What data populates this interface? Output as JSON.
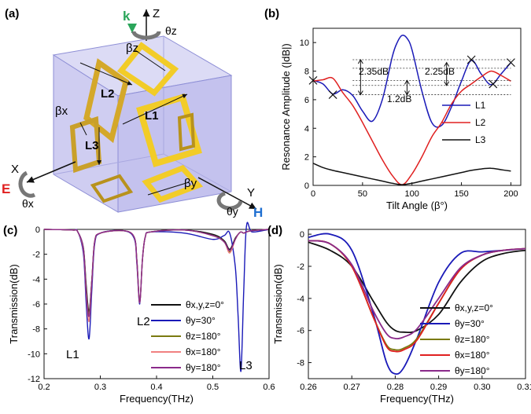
{
  "panels": {
    "a": {
      "label": "(a)",
      "axes": {
        "z": "Z",
        "k": "k",
        "theta_z": "θz",
        "x": "X",
        "e": "E",
        "theta_x": "θx",
        "y": "Y",
        "h": "H",
        "theta_y": "θy"
      },
      "callouts": {
        "beta_z": "βz",
        "beta_x": "βx",
        "beta_y": "βy",
        "l1": "L1",
        "l2": "L2",
        "l3": "L3"
      },
      "colors": {
        "cube": "#c9c8f0",
        "cube_edge": "#8e8fd6",
        "gold": "#f2cc28",
        "gold_dark": "#b8921c",
        "k": "#2aa55a",
        "e": "#e02020",
        "h": "#1f6fd1"
      }
    },
    "b": {
      "label": "(b)",
      "annotations": {
        "a1": "2.35dB",
        "a2": "1.2dB",
        "a3": "2.25dB"
      },
      "legend": [
        "L1",
        "L2",
        "L3"
      ],
      "chart_data": {
        "type": "line",
        "xlabel": "Tilt Angle (β°)",
        "ylabel": "Resonance Amplitude (|dB|)",
        "xlim": [
          0,
          210
        ],
        "ylim": [
          0,
          11
        ],
        "xticks": [
          "0",
          "50",
          "100",
          "150",
          "200"
        ],
        "yticks": [
          "0",
          "2",
          "4",
          "6",
          "8",
          "10"
        ],
        "series": [
          {
            "name": "L1",
            "color": "#1a1ab8",
            "x": [
              0,
              10,
              20,
              30,
              40,
              50,
              60,
              70,
              80,
              85,
              90,
              95,
              100,
              110,
              120,
              130,
              140,
              150,
              160,
              170,
              180,
              190,
              200
            ],
            "y": [
              7.35,
              7.1,
              6.4,
              6.7,
              6.3,
              5.2,
              4.5,
              6.0,
              9.0,
              10.0,
              10.5,
              10.3,
              9.5,
              6.6,
              4.4,
              4.2,
              5.5,
              7.3,
              8.75,
              7.8,
              7.05,
              7.8,
              8.6
            ]
          },
          {
            "name": "L2",
            "color": "#e02020",
            "x": [
              0,
              10,
              20,
              30,
              40,
              50,
              60,
              70,
              80,
              90,
              100,
              110,
              120,
              130,
              140,
              150,
              160,
              170,
              180,
              190,
              200
            ],
            "y": [
              7.3,
              7.4,
              7.5,
              6.5,
              5.6,
              4.4,
              3.1,
              1.8,
              0.7,
              0.05,
              0.8,
              2.0,
              3.4,
              4.4,
              5.7,
              6.6,
              7.1,
              7.6,
              8.0,
              7.7,
              7.3
            ]
          },
          {
            "name": "L3",
            "color": "#111111",
            "x": [
              0,
              10,
              20,
              30,
              40,
              50,
              60,
              70,
              80,
              90,
              100,
              110,
              120,
              130,
              140,
              150,
              160,
              170,
              180,
              190,
              200
            ],
            "y": [
              1.55,
              1.25,
              1.05,
              0.9,
              0.75,
              0.6,
              0.45,
              0.3,
              0.15,
              0.05,
              0.15,
              0.3,
              0.45,
              0.6,
              0.75,
              0.9,
              1.05,
              1.15,
              1.2,
              1.1,
              1.0
            ]
          }
        ],
        "markers": [
          {
            "x": 0,
            "y": 7.35
          },
          {
            "x": 20,
            "y": 6.35
          },
          {
            "x": 160,
            "y": 8.8
          },
          {
            "x": 182,
            "y": 7.1
          },
          {
            "x": 200,
            "y": 8.6
          }
        ]
      }
    },
    "c": {
      "label": "(c)",
      "legend": [
        "θx,y,z=0°",
        "θy=30°",
        "θz=180°",
        "θx=180°",
        "θy=180°"
      ],
      "peak_labels": [
        "L1",
        "L2",
        "L3"
      ],
      "chart_data": {
        "type": "line",
        "xlabel": "Frequency(THz)",
        "ylabel": "Transmission(dB)",
        "xlim": [
          0.2,
          0.6
        ],
        "ylim": [
          -12,
          0
        ],
        "xticks": [
          "0.2",
          "0.3",
          "0.4",
          "0.5",
          "0.6"
        ],
        "yticks": [
          "0",
          "-2",
          "-4",
          "-6",
          "-8",
          "-10",
          "-12"
        ],
        "x": [
          0.2,
          0.25,
          0.26,
          0.27,
          0.275,
          0.28,
          0.285,
          0.29,
          0.3,
          0.34,
          0.36,
          0.365,
          0.37,
          0.375,
          0.38,
          0.39,
          0.45,
          0.5,
          0.52,
          0.53,
          0.54,
          0.545,
          0.55,
          0.555,
          0.56,
          0.57,
          0.6
        ],
        "series": [
          {
            "name": "θx,y,z=0°",
            "color": "#111111",
            "values": [
              0,
              -0.05,
              -0.2,
              -1.5,
              -4.5,
              -6.6,
              -4.0,
              -1.0,
              -0.3,
              -0.1,
              -0.6,
              -2.5,
              -5.8,
              -2.4,
              -0.6,
              -0.2,
              -0.05,
              -0.4,
              -0.9,
              -1.6,
              -0.7,
              -0.4,
              -0.2,
              -0.3,
              -0.2,
              -0.1,
              0
            ]
          },
          {
            "name": "θy=30°",
            "color": "#1a1ab8",
            "values": [
              0,
              -0.05,
              -0.2,
              -2.0,
              -6.0,
              -8.8,
              -4.8,
              -1.2,
              -0.3,
              -0.1,
              -0.7,
              -2.8,
              -6.0,
              -2.4,
              -0.6,
              -0.2,
              -0.3,
              -0.8,
              -0.5,
              -0.3,
              -3.0,
              -7.0,
              -11.4,
              -5.0,
              0.3,
              -0.2,
              0
            ]
          },
          {
            "name": "θz=180°",
            "color": "#7a7a10",
            "values": [
              0,
              -0.05,
              -0.2,
              -1.6,
              -4.8,
              -6.8,
              -4.0,
              -1.0,
              -0.3,
              -0.1,
              -0.6,
              -2.5,
              -5.9,
              -2.4,
              -0.6,
              -0.2,
              -0.05,
              -0.5,
              -1.0,
              -1.8,
              -0.8,
              -0.4,
              -0.2,
              -0.3,
              -0.2,
              -0.1,
              0
            ]
          },
          {
            "name": "θx=180°",
            "color": "#f08080",
            "values": [
              0,
              -0.05,
              -0.2,
              -1.7,
              -5.2,
              -7.4,
              -4.2,
              -1.0,
              -0.3,
              -0.1,
              -0.6,
              -2.6,
              -5.9,
              -2.4,
              -0.6,
              -0.2,
              -0.05,
              -0.5,
              -1.0,
              -1.9,
              -0.8,
              -0.4,
              -0.2,
              -0.3,
              -0.2,
              -0.1,
              0
            ]
          },
          {
            "name": "θy=180°",
            "color": "#8a2a8a",
            "values": [
              0,
              -0.05,
              -0.2,
              -1.6,
              -5.0,
              -7.0,
              -4.1,
              -1.0,
              -0.3,
              -0.1,
              -0.6,
              -2.5,
              -5.9,
              -2.4,
              -0.6,
              -0.2,
              -0.05,
              -0.5,
              -1.0,
              -1.7,
              -0.8,
              -0.4,
              -0.2,
              -0.3,
              -0.2,
              -0.1,
              0
            ]
          }
        ]
      }
    },
    "d": {
      "label": "(d)",
      "legend": [
        "θx,y,z=0°",
        "θy=30°",
        "θz=180°",
        "θx=180°",
        "θy=180°"
      ],
      "chart_data": {
        "type": "line",
        "xlabel": "Frequency(THz)",
        "ylabel": "Transmission(dB)",
        "xlim": [
          0.26,
          0.31
        ],
        "ylim": [
          -9,
          0.3
        ],
        "xticks": [
          "0.26",
          "0.27",
          "0.28",
          "0.29",
          "0.30",
          "0.31"
        ],
        "yticks": [
          "0",
          "-2",
          "-4",
          "-6",
          "-8"
        ],
        "x": [
          0.26,
          0.265,
          0.27,
          0.275,
          0.278,
          0.28,
          0.282,
          0.285,
          0.29,
          0.295,
          0.3,
          0.305,
          0.31
        ],
        "series": [
          {
            "name": "θx,y,z=0°",
            "color": "#111111",
            "values": [
              -0.5,
              -1.0,
              -2.0,
              -4.2,
              -5.5,
              -6.0,
              -6.1,
              -6.0,
              -5.0,
              -3.0,
              -1.7,
              -1.2,
              -1.0
            ]
          },
          {
            "name": "θy=30°",
            "color": "#1a1ab8",
            "values": [
              -0.2,
              0.0,
              -1.0,
              -5.0,
              -8.0,
              -8.7,
              -8.3,
              -6.5,
              -3.0,
              -1.2,
              -1.1,
              -1.0,
              -0.9
            ]
          },
          {
            "name": "θz=180°",
            "color": "#7a7a10",
            "values": [
              -0.4,
              -0.6,
              -2.0,
              -5.2,
              -6.9,
              -7.2,
              -7.1,
              -6.5,
              -4.3,
              -2.2,
              -1.3,
              -1.0,
              -0.9
            ]
          },
          {
            "name": "θx=180°",
            "color": "#e02020",
            "values": [
              -0.4,
              -0.6,
              -2.0,
              -5.2,
              -7.0,
              -7.3,
              -7.2,
              -6.6,
              -4.3,
              -2.2,
              -1.3,
              -1.0,
              -0.9
            ]
          },
          {
            "name": "θy=180°",
            "color": "#8a2a8a",
            "values": [
              -0.4,
              -0.6,
              -1.9,
              -4.8,
              -6.2,
              -6.5,
              -6.4,
              -5.9,
              -4.0,
              -2.1,
              -1.3,
              -1.0,
              -0.9
            ]
          }
        ]
      }
    }
  }
}
